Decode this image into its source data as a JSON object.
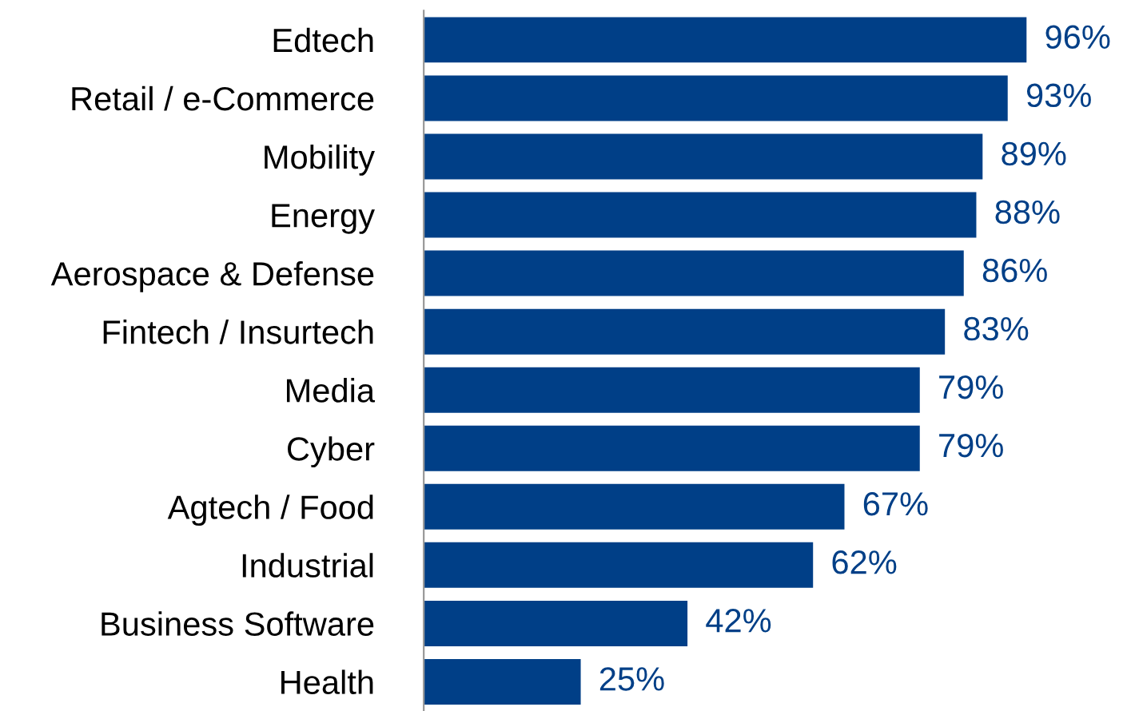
{
  "chart_data": {
    "type": "bar",
    "orientation": "horizontal",
    "categories": [
      "Edtech",
      "Retail / e-Commerce",
      "Mobility",
      "Energy",
      "Aerospace & Defense",
      "Fintech / Insurtech",
      "Media",
      "Cyber",
      "Agtech / Food",
      "Industrial",
      "Business Software",
      "Health"
    ],
    "values": [
      96,
      93,
      89,
      88,
      86,
      83,
      79,
      79,
      67,
      62,
      42,
      25
    ],
    "value_labels": [
      "96%",
      "93%",
      "89%",
      "88%",
      "86%",
      "83%",
      "79%",
      "79%",
      "67%",
      "62%",
      "42%",
      "25%"
    ],
    "color": "#003f87",
    "tick_labels": "y",
    "grid": false,
    "legend": false
  }
}
